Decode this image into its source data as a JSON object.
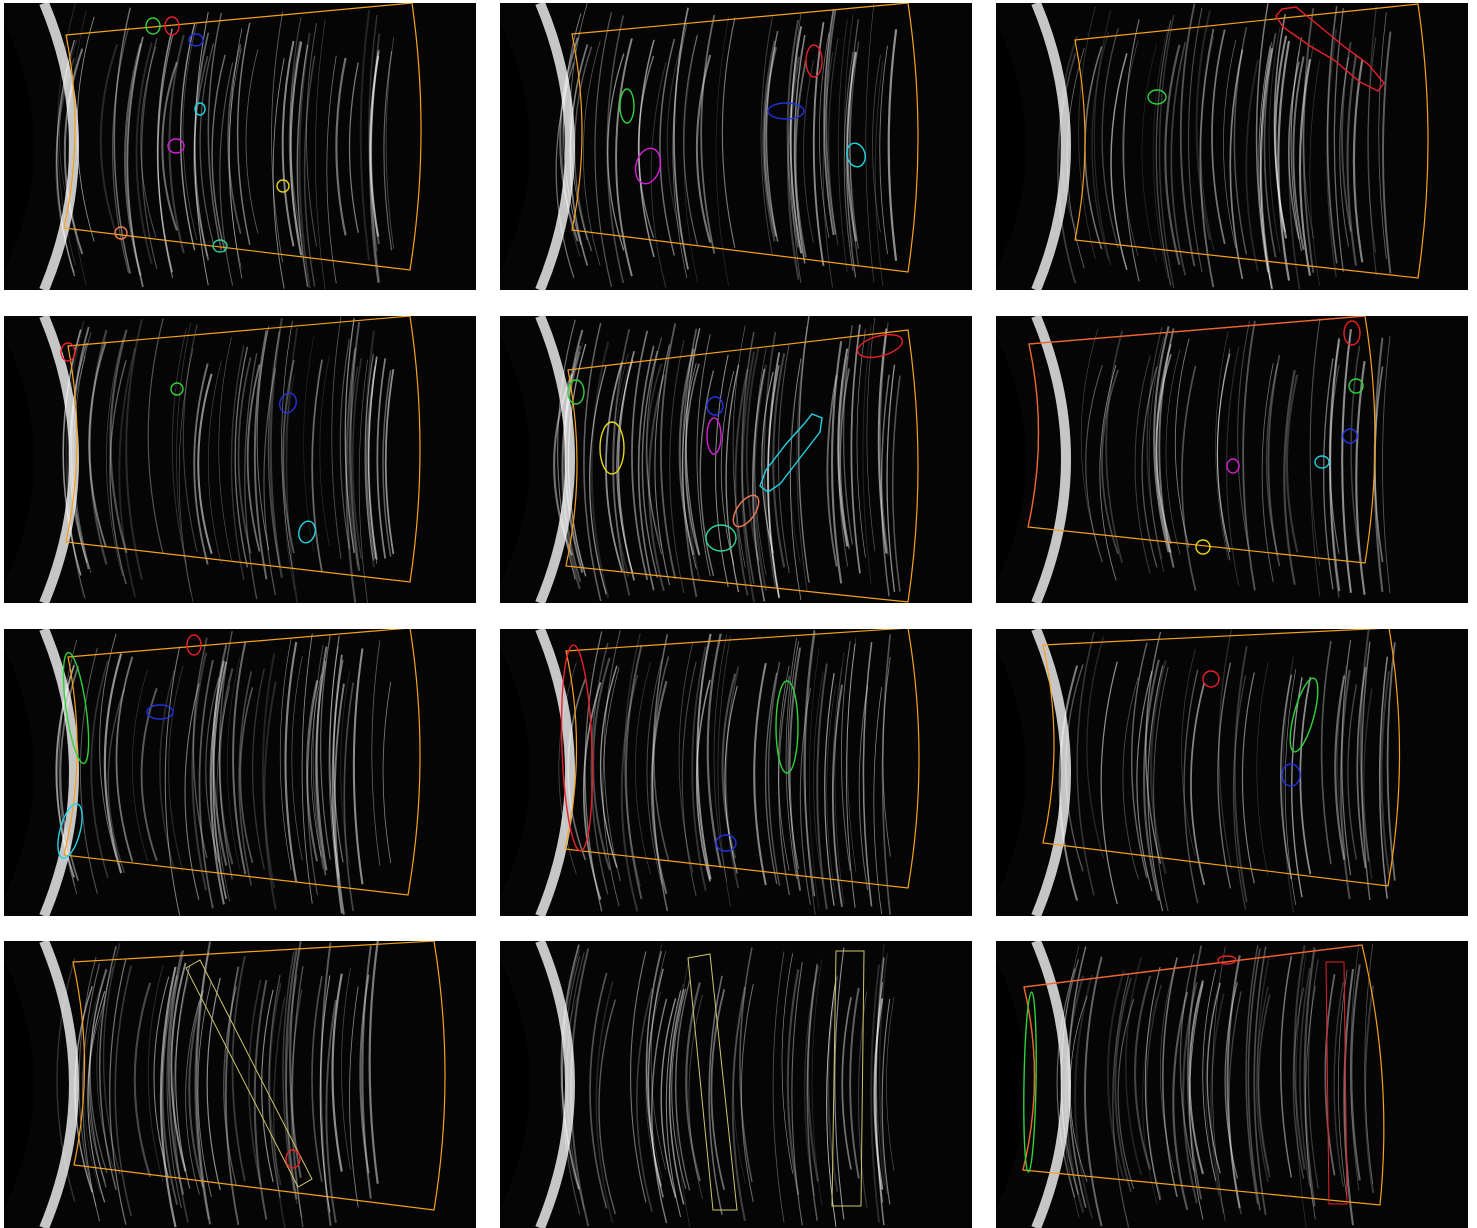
{
  "figure": {
    "background": "#ffffff",
    "rows": 4,
    "columns": 3,
    "colors": {
      "roi_outline": "#f5a21b",
      "image_background": "#050505",
      "streak": "#ffffff",
      "red": "#e8202a",
      "green": "#2fd43b",
      "blue": "#2233dd",
      "cyan": "#22d3e3",
      "magenta": "#d81fd8",
      "yellow": "#e7d61c",
      "salmon": "#f07a55",
      "mint": "#2fd49a",
      "olive": "#cfc66a"
    },
    "panels": [
      {
        "roi": "orange-curved-region",
        "streak_density": "medium",
        "defect_outlines": [
          {
            "shape": "blob",
            "color": "green"
          },
          {
            "shape": "blob",
            "color": "red"
          },
          {
            "shape": "blob",
            "color": "blue"
          },
          {
            "shape": "blob",
            "color": "cyan"
          },
          {
            "shape": "blob",
            "color": "magenta"
          },
          {
            "shape": "blob",
            "color": "yellow"
          },
          {
            "shape": "blob",
            "color": "salmon"
          },
          {
            "shape": "blob",
            "color": "mint"
          }
        ]
      },
      {
        "roi": "orange-curved-region",
        "streak_density": "medium",
        "defect_outlines": [
          {
            "shape": "elongated-blob",
            "color": "red"
          },
          {
            "shape": "elongated-blob",
            "color": "green"
          },
          {
            "shape": "elongated-blob",
            "color": "blue"
          },
          {
            "shape": "blob",
            "color": "magenta"
          },
          {
            "shape": "blob",
            "color": "cyan"
          }
        ]
      },
      {
        "roi": "orange-curved-region",
        "streak_density": "medium",
        "defect_outlines": [
          {
            "shape": "long-diagonal-outline",
            "color": "red"
          },
          {
            "shape": "blob",
            "color": "green"
          }
        ]
      },
      {
        "roi": "orange-curved-region",
        "streak_density": "medium",
        "defect_outlines": [
          {
            "shape": "blob",
            "color": "red"
          },
          {
            "shape": "blob",
            "color": "green"
          },
          {
            "shape": "blob",
            "color": "blue"
          },
          {
            "shape": "blob",
            "color": "cyan"
          }
        ]
      },
      {
        "roi": "orange-curved-region",
        "streak_density": "high",
        "defect_outlines": [
          {
            "shape": "elongated-blob",
            "color": "red"
          },
          {
            "shape": "blob",
            "color": "green"
          },
          {
            "shape": "blob",
            "color": "yellow"
          },
          {
            "shape": "blob",
            "color": "blue"
          },
          {
            "shape": "elongated-blob",
            "color": "magenta"
          },
          {
            "shape": "long-diagonal-outline",
            "color": "cyan"
          },
          {
            "shape": "elongated-blob",
            "color": "salmon"
          },
          {
            "shape": "blob",
            "color": "mint"
          }
        ]
      },
      {
        "roi": "orange-red-curved-region",
        "streak_density": "low",
        "defect_outlines": [
          {
            "shape": "elongated-blob",
            "color": "red"
          },
          {
            "shape": "blob",
            "color": "green"
          },
          {
            "shape": "blob",
            "color": "blue"
          },
          {
            "shape": "blob",
            "color": "cyan"
          },
          {
            "shape": "blob",
            "color": "magenta"
          },
          {
            "shape": "blob",
            "color": "yellow"
          }
        ]
      },
      {
        "roi": "orange-curved-region",
        "streak_density": "medium",
        "defect_outlines": [
          {
            "shape": "blob",
            "color": "red"
          },
          {
            "shape": "long-edge-outline",
            "color": "green"
          },
          {
            "shape": "elongated-blob",
            "color": "blue"
          },
          {
            "shape": "long-edge-outline",
            "color": "cyan"
          }
        ]
      },
      {
        "roi": "orange-curved-region",
        "streak_density": "medium",
        "defect_outlines": [
          {
            "shape": "long-edge-outline",
            "color": "red"
          },
          {
            "shape": "long-vertical-outline",
            "color": "green"
          },
          {
            "shape": "blob",
            "color": "blue"
          }
        ]
      },
      {
        "roi": "orange-curved-region",
        "streak_density": "low",
        "defect_outlines": [
          {
            "shape": "blob",
            "color": "red"
          },
          {
            "shape": "long-vertical-outline",
            "color": "green"
          },
          {
            "shape": "blob",
            "color": "blue"
          }
        ]
      },
      {
        "roi": "orange-curved-region",
        "streak_density": "medium",
        "defect_outlines": [
          {
            "shape": "diagonal-box",
            "color": "olive"
          },
          {
            "shape": "blob",
            "color": "red"
          }
        ]
      },
      {
        "roi": "none",
        "streak_density": "medium",
        "defect_outlines": [
          {
            "shape": "vertical-box",
            "color": "olive"
          },
          {
            "shape": "vertical-box",
            "color": "olive"
          }
        ]
      },
      {
        "roi": "orange-red-curved-region",
        "streak_density": "medium",
        "defect_outlines": [
          {
            "shape": "blob",
            "color": "red"
          },
          {
            "shape": "vertical-box",
            "color": "red"
          },
          {
            "shape": "long-edge-outline",
            "color": "green"
          }
        ]
      }
    ]
  }
}
